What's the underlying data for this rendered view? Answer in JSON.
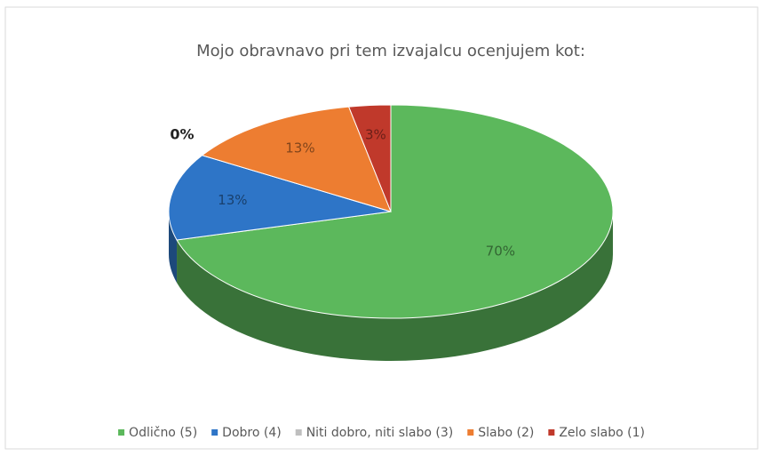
{
  "chart_data": {
    "type": "pie",
    "title": "Mojo obravnavo pri tem izvajalcu ocenjujem kot:",
    "categories": [
      "Odlično (5)",
      "Dobro (4)",
      "Niti dobro, niti slabo (3)",
      "Slabo (2)",
      "Zelo slabo (1)"
    ],
    "values": [
      70,
      13,
      0,
      13,
      3
    ],
    "value_labels": [
      "70%",
      "13%",
      "0%",
      "13%",
      "3%"
    ],
    "colors": [
      "#5cb85c",
      "#2e75c7",
      "#bfbfbf",
      "#ed7d31",
      "#c0392b"
    ],
    "legend": "bottom"
  }
}
